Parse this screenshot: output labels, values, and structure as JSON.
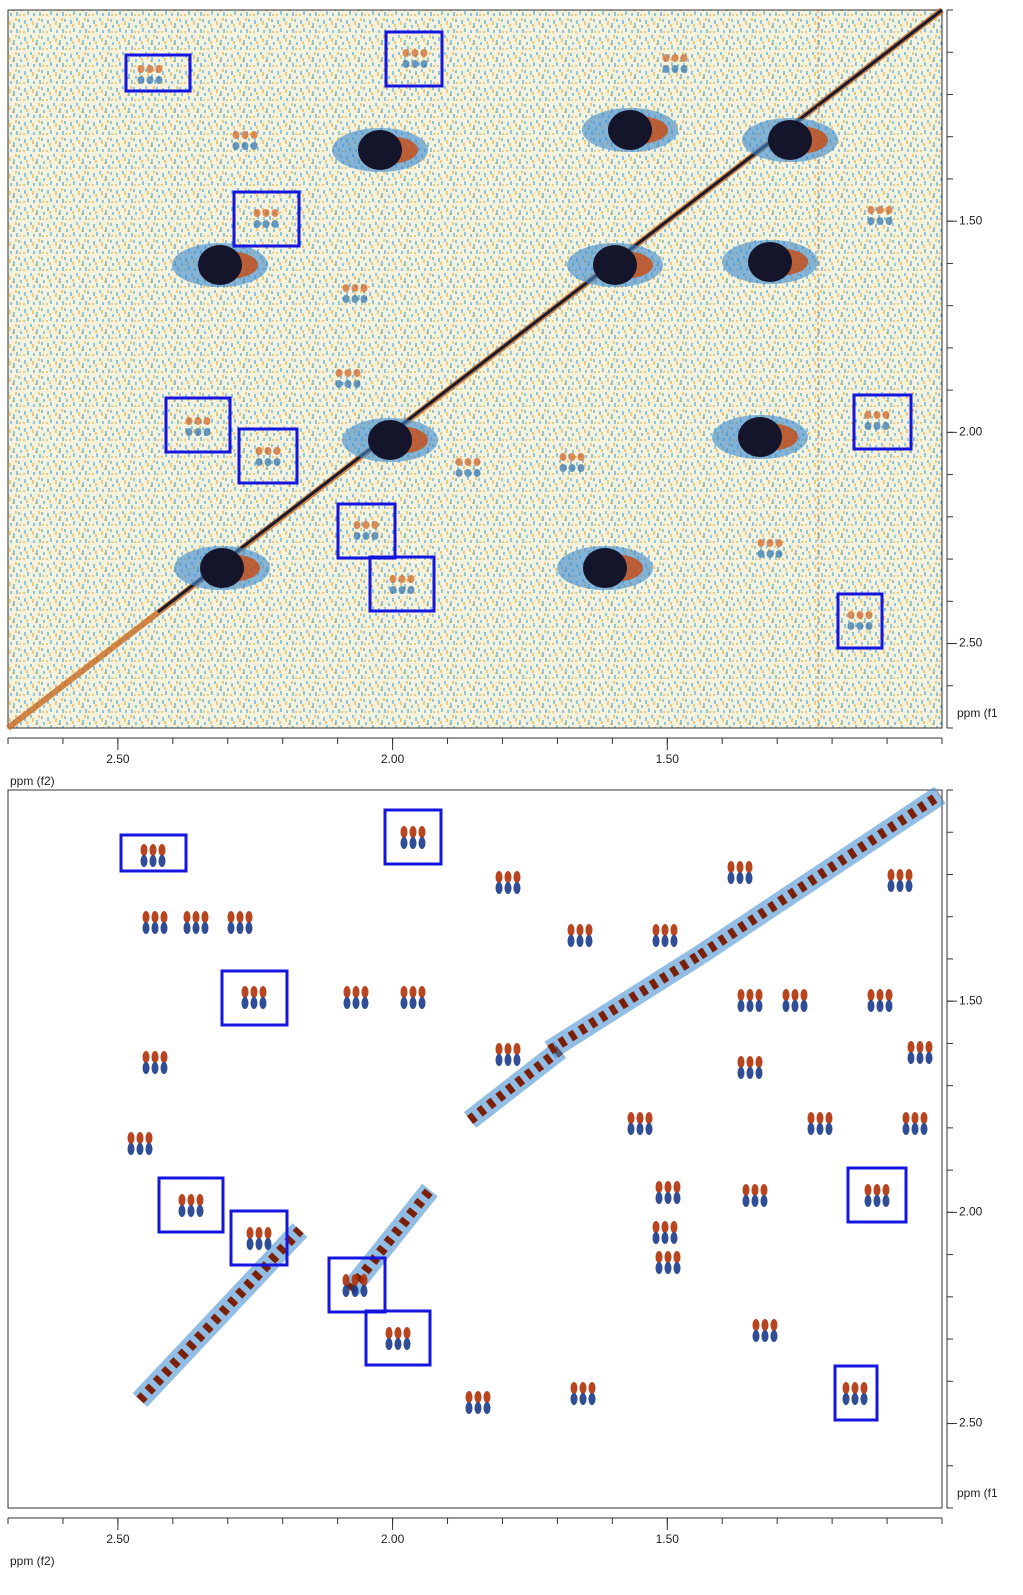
{
  "panels": [
    {
      "x_axis": {
        "label": "ppm (f2)",
        "lim": [
          2.7,
          1.0
        ],
        "ticks": [
          {
            "value": 2.5,
            "label": "2.50"
          },
          {
            "value": 2.0,
            "label": "2.00"
          },
          {
            "value": 1.5,
            "label": "1.50"
          }
        ]
      },
      "y_axis": {
        "label": "ppm (f1",
        "lim": [
          1.0,
          2.7
        ],
        "ticks": [
          {
            "value": 1.5,
            "label": "1.50"
          },
          {
            "value": 2.0,
            "label": "2.00"
          },
          {
            "value": 2.5,
            "label": "2.50"
          }
        ]
      }
    },
    {
      "x_axis": {
        "label": "ppm (f2)",
        "lim": [
          2.7,
          1.0
        ],
        "ticks": [
          {
            "value": 2.5,
            "label": "2.50"
          },
          {
            "value": 2.0,
            "label": "2.00"
          },
          {
            "value": 1.5,
            "label": "1.50"
          }
        ]
      },
      "y_axis": {
        "label": "ppm (f1",
        "lim": [
          1.0,
          2.7
        ],
        "ticks": [
          {
            "value": 1.5,
            "label": "1.50"
          },
          {
            "value": 2.0,
            "label": "2.00"
          },
          {
            "value": 2.5,
            "label": "2.50"
          }
        ]
      }
    }
  ]
}
